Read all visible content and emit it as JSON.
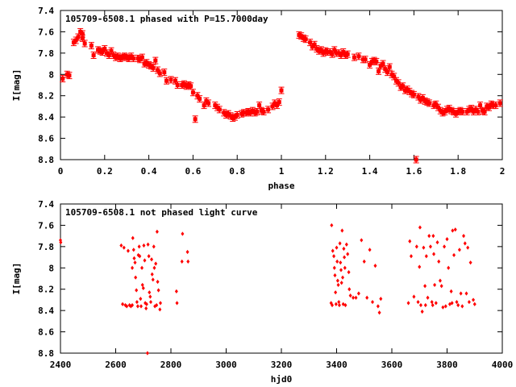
{
  "chart_data": [
    {
      "type": "scatter",
      "title": "105709-6508.1 phased with P=15.7000day",
      "xlabel": "phase",
      "ylabel": "I[mag]",
      "xlim": [
        0,
        2
      ],
      "ylim": [
        8.8,
        7.4
      ],
      "y_inverted": true,
      "xticks": [
        "0",
        "0.2",
        "0.4",
        "0.6",
        "0.8",
        "1",
        "1.2",
        "1.4",
        "1.6",
        "1.8",
        "2"
      ],
      "yticks": [
        "7.4",
        "7.6",
        "7.8",
        "8",
        "8.2",
        "8.4",
        "8.6",
        "8.8"
      ],
      "marker_color": "#ff0000",
      "marker": "error-cross",
      "points": [
        [
          0.01,
          8.04
        ],
        [
          0.03,
          8.0
        ],
        [
          0.04,
          8.01
        ],
        [
          0.06,
          7.7
        ],
        [
          0.07,
          7.68
        ],
        [
          0.08,
          7.65
        ],
        [
          0.09,
          7.6
        ],
        [
          0.1,
          7.62
        ],
        [
          0.1,
          7.66
        ],
        [
          0.11,
          7.71
        ],
        [
          0.14,
          7.73
        ],
        [
          0.15,
          7.82
        ],
        [
          0.17,
          7.77
        ],
        [
          0.18,
          7.78
        ],
        [
          0.19,
          7.79
        ],
        [
          0.2,
          7.76
        ],
        [
          0.21,
          7.8
        ],
        [
          0.22,
          7.82
        ],
        [
          0.23,
          7.78
        ],
        [
          0.24,
          7.82
        ],
        [
          0.25,
          7.84
        ],
        [
          0.26,
          7.83
        ],
        [
          0.27,
          7.85
        ],
        [
          0.28,
          7.84
        ],
        [
          0.29,
          7.83
        ],
        [
          0.3,
          7.84
        ],
        [
          0.31,
          7.85
        ],
        [
          0.32,
          7.83
        ],
        [
          0.33,
          7.85
        ],
        [
          0.35,
          7.85
        ],
        [
          0.36,
          7.86
        ],
        [
          0.37,
          7.84
        ],
        [
          0.38,
          7.9
        ],
        [
          0.39,
          7.89
        ],
        [
          0.4,
          7.91
        ],
        [
          0.41,
          7.92
        ],
        [
          0.42,
          7.94
        ],
        [
          0.43,
          7.87
        ],
        [
          0.44,
          7.96
        ],
        [
          0.45,
          7.99
        ],
        [
          0.47,
          7.98
        ],
        [
          0.48,
          8.06
        ],
        [
          0.5,
          8.05
        ],
        [
          0.52,
          8.06
        ],
        [
          0.53,
          8.1
        ],
        [
          0.55,
          8.1
        ],
        [
          0.56,
          8.09
        ],
        [
          0.57,
          8.11
        ],
        [
          0.58,
          8.1
        ],
        [
          0.59,
          8.11
        ],
        [
          0.6,
          8.17
        ],
        [
          0.61,
          8.42
        ],
        [
          0.62,
          8.2
        ],
        [
          0.63,
          8.23
        ],
        [
          0.65,
          8.29
        ],
        [
          0.66,
          8.25
        ],
        [
          0.67,
          8.27
        ],
        [
          0.7,
          8.29
        ],
        [
          0.71,
          8.31
        ],
        [
          0.72,
          8.33
        ],
        [
          0.74,
          8.36
        ],
        [
          0.75,
          8.38
        ],
        [
          0.76,
          8.37
        ],
        [
          0.77,
          8.39
        ],
        [
          0.78,
          8.41
        ],
        [
          0.79,
          8.4
        ],
        [
          0.8,
          8.38
        ],
        [
          0.82,
          8.37
        ],
        [
          0.83,
          8.36
        ],
        [
          0.84,
          8.36
        ],
        [
          0.85,
          8.35
        ],
        [
          0.86,
          8.36
        ],
        [
          0.87,
          8.34
        ],
        [
          0.88,
          8.36
        ],
        [
          0.89,
          8.35
        ],
        [
          0.9,
          8.29
        ],
        [
          0.91,
          8.34
        ],
        [
          0.92,
          8.35
        ],
        [
          0.94,
          8.33
        ],
        [
          0.96,
          8.3
        ],
        [
          0.97,
          8.27
        ],
        [
          0.98,
          8.29
        ],
        [
          0.99,
          8.26
        ],
        [
          1.0,
          8.15
        ],
        [
          1.08,
          7.63
        ],
        [
          1.09,
          7.64
        ],
        [
          1.1,
          7.66
        ],
        [
          1.11,
          7.67
        ],
        [
          1.13,
          7.7
        ],
        [
          1.14,
          7.74
        ],
        [
          1.15,
          7.72
        ],
        [
          1.16,
          7.76
        ],
        [
          1.17,
          7.78
        ],
        [
          1.18,
          7.77
        ],
        [
          1.19,
          7.8
        ],
        [
          1.2,
          7.78
        ],
        [
          1.21,
          7.79
        ],
        [
          1.22,
          7.79
        ],
        [
          1.23,
          7.81
        ],
        [
          1.24,
          7.77
        ],
        [
          1.25,
          7.8
        ],
        [
          1.26,
          7.8
        ],
        [
          1.27,
          7.82
        ],
        [
          1.28,
          7.79
        ],
        [
          1.29,
          7.82
        ],
        [
          1.3,
          7.81
        ],
        [
          1.33,
          7.84
        ],
        [
          1.35,
          7.83
        ],
        [
          1.37,
          7.86
        ],
        [
          1.38,
          7.86
        ],
        [
          1.4,
          7.91
        ],
        [
          1.41,
          7.88
        ],
        [
          1.42,
          7.87
        ],
        [
          1.43,
          7.88
        ],
        [
          1.44,
          7.97
        ],
        [
          1.45,
          7.92
        ],
        [
          1.46,
          7.9
        ],
        [
          1.47,
          7.95
        ],
        [
          1.48,
          7.98
        ],
        [
          1.49,
          7.93
        ],
        [
          1.5,
          8.0
        ],
        [
          1.51,
          8.02
        ],
        [
          1.52,
          8.06
        ],
        [
          1.53,
          8.08
        ],
        [
          1.54,
          8.12
        ],
        [
          1.55,
          8.11
        ],
        [
          1.56,
          8.15
        ],
        [
          1.57,
          8.14
        ],
        [
          1.58,
          8.16
        ],
        [
          1.59,
          8.18
        ],
        [
          1.6,
          8.19
        ],
        [
          1.61,
          8.8
        ],
        [
          1.62,
          8.21
        ],
        [
          1.63,
          8.24
        ],
        [
          1.64,
          8.22
        ],
        [
          1.65,
          8.25
        ],
        [
          1.66,
          8.26
        ],
        [
          1.67,
          8.27
        ],
        [
          1.69,
          8.29
        ],
        [
          1.7,
          8.28
        ],
        [
          1.71,
          8.31
        ],
        [
          1.72,
          8.34
        ],
        [
          1.73,
          8.36
        ],
        [
          1.74,
          8.35
        ],
        [
          1.75,
          8.33
        ],
        [
          1.76,
          8.32
        ],
        [
          1.77,
          8.34
        ],
        [
          1.78,
          8.35
        ],
        [
          1.79,
          8.37
        ],
        [
          1.8,
          8.35
        ],
        [
          1.81,
          8.34
        ],
        [
          1.82,
          8.35
        ],
        [
          1.84,
          8.35
        ],
        [
          1.85,
          8.33
        ],
        [
          1.86,
          8.32
        ],
        [
          1.87,
          8.35
        ],
        [
          1.88,
          8.33
        ],
        [
          1.89,
          8.35
        ],
        [
          1.9,
          8.29
        ],
        [
          1.91,
          8.34
        ],
        [
          1.92,
          8.35
        ],
        [
          1.93,
          8.3
        ],
        [
          1.94,
          8.31
        ],
        [
          1.95,
          8.28
        ],
        [
          1.96,
          8.29
        ],
        [
          1.97,
          8.29
        ],
        [
          1.99,
          8.27
        ]
      ]
    },
    {
      "type": "scatter",
      "title": "105709-6508.1 not phased light curve",
      "xlabel": "hjd0",
      "ylabel": "I[mag]",
      "xlim": [
        2400,
        4000
      ],
      "ylim": [
        8.8,
        7.4
      ],
      "y_inverted": true,
      "xticks": [
        "2400",
        "2600",
        "2800",
        "3000",
        "3200",
        "3400",
        "3600",
        "3800",
        "4000"
      ],
      "yticks": [
        "7.4",
        "7.6",
        "7.8",
        "8",
        "8.2",
        "8.4",
        "8.6",
        "8.8"
      ],
      "marker_color": "#ff0000",
      "marker": "diamond",
      "points": [
        [
          2400,
          7.74
        ],
        [
          2401,
          7.76
        ],
        [
          2620,
          7.79
        ],
        [
          2625,
          8.34
        ],
        [
          2630,
          7.81
        ],
        [
          2635,
          8.35
        ],
        [
          2640,
          8.36
        ],
        [
          2645,
          7.84
        ],
        [
          2650,
          8.35
        ],
        [
          2655,
          8.36
        ],
        [
          2660,
          8.0
        ],
        [
          2660,
          8.35
        ],
        [
          2662,
          7.72
        ],
        [
          2665,
          7.83
        ],
        [
          2667,
          7.91
        ],
        [
          2670,
          7.95
        ],
        [
          2672,
          8.09
        ],
        [
          2675,
          8.21
        ],
        [
          2677,
          8.32
        ],
        [
          2680,
          8.36
        ],
        [
          2682,
          7.88
        ],
        [
          2685,
          7.8
        ],
        [
          2687,
          7.89
        ],
        [
          2690,
          8.29
        ],
        [
          2692,
          8.36
        ],
        [
          2695,
          8.0
        ],
        [
          2697,
          8.16
        ],
        [
          2700,
          8.19
        ],
        [
          2702,
          7.79
        ],
        [
          2705,
          7.93
        ],
        [
          2707,
          8.33
        ],
        [
          2710,
          8.38
        ],
        [
          2712,
          8.34
        ],
        [
          2715,
          8.8
        ],
        [
          2717,
          7.78
        ],
        [
          2720,
          7.89
        ],
        [
          2722,
          8.23
        ],
        [
          2725,
          8.27
        ],
        [
          2727,
          8.32
        ],
        [
          2730,
          7.92
        ],
        [
          2732,
          8.06
        ],
        [
          2735,
          8.11
        ],
        [
          2738,
          7.8
        ],
        [
          2740,
          8.0
        ],
        [
          2742,
          8.36
        ],
        [
          2745,
          7.96
        ],
        [
          2748,
          8.35
        ],
        [
          2750,
          7.66
        ],
        [
          2752,
          8.13
        ],
        [
          2755,
          8.21
        ],
        [
          2760,
          8.39
        ],
        [
          2762,
          8.33
        ],
        [
          2820,
          8.22
        ],
        [
          2822,
          8.33
        ],
        [
          2840,
          7.94
        ],
        [
          2842,
          7.68
        ],
        [
          2860,
          7.85
        ],
        [
          2862,
          7.94
        ],
        [
          3380,
          8.33
        ],
        [
          3382,
          7.6
        ],
        [
          3384,
          8.35
        ],
        [
          3386,
          7.84
        ],
        [
          3390,
          7.89
        ],
        [
          3392,
          8.0
        ],
        [
          3394,
          8.07
        ],
        [
          3396,
          8.23
        ],
        [
          3398,
          8.34
        ],
        [
          3400,
          7.81
        ],
        [
          3402,
          7.94
        ],
        [
          3404,
          8.12
        ],
        [
          3406,
          8.16
        ],
        [
          3408,
          8.32
        ],
        [
          3410,
          8.35
        ],
        [
          3412,
          7.77
        ],
        [
          3414,
          7.95
        ],
        [
          3416,
          8.02
        ],
        [
          3418,
          8.14
        ],
        [
          3420,
          7.65
        ],
        [
          3422,
          8.09
        ],
        [
          3424,
          8.34
        ],
        [
          3426,
          7.82
        ],
        [
          3428,
          7.9
        ],
        [
          3430,
          8.0
        ],
        [
          3432,
          8.35
        ],
        [
          3436,
          7.78
        ],
        [
          3440,
          7.87
        ],
        [
          3444,
          8.04
        ],
        [
          3446,
          8.2
        ],
        [
          3450,
          8.26
        ],
        [
          3460,
          8.28
        ],
        [
          3470,
          8.28
        ],
        [
          3480,
          8.24
        ],
        [
          3490,
          7.74
        ],
        [
          3500,
          7.94
        ],
        [
          3510,
          8.28
        ],
        [
          3520,
          7.83
        ],
        [
          3530,
          8.32
        ],
        [
          3540,
          7.98
        ],
        [
          3550,
          8.36
        ],
        [
          3555,
          8.42
        ],
        [
          3560,
          8.29
        ],
        [
          3660,
          8.33
        ],
        [
          3665,
          7.75
        ],
        [
          3670,
          7.89
        ],
        [
          3680,
          8.27
        ],
        [
          3690,
          7.8
        ],
        [
          3695,
          8.32
        ],
        [
          3700,
          7.99
        ],
        [
          3702,
          7.62
        ],
        [
          3705,
          8.35
        ],
        [
          3710,
          8.41
        ],
        [
          3715,
          7.81
        ],
        [
          3720,
          8.17
        ],
        [
          3722,
          8.35
        ],
        [
          3725,
          7.89
        ],
        [
          3730,
          8.28
        ],
        [
          3735,
          7.7
        ],
        [
          3740,
          7.8
        ],
        [
          3745,
          8.32
        ],
        [
          3748,
          8.35
        ],
        [
          3750,
          7.7
        ],
        [
          3752,
          7.87
        ],
        [
          3755,
          8.16
        ],
        [
          3760,
          8.33
        ],
        [
          3765,
          7.76
        ],
        [
          3770,
          7.94
        ],
        [
          3775,
          8.12
        ],
        [
          3780,
          8.17
        ],
        [
          3785,
          8.37
        ],
        [
          3790,
          7.8
        ],
        [
          3795,
          8.36
        ],
        [
          3800,
          7.73
        ],
        [
          3805,
          8.0
        ],
        [
          3810,
          8.34
        ],
        [
          3815,
          8.22
        ],
        [
          3818,
          8.33
        ],
        [
          3820,
          7.65
        ],
        [
          3825,
          7.88
        ],
        [
          3830,
          7.64
        ],
        [
          3835,
          8.32
        ],
        [
          3840,
          8.35
        ],
        [
          3845,
          7.83
        ],
        [
          3850,
          8.24
        ],
        [
          3855,
          8.36
        ],
        [
          3860,
          7.7
        ],
        [
          3865,
          7.77
        ],
        [
          3870,
          8.24
        ],
        [
          3875,
          7.81
        ],
        [
          3880,
          8.32
        ],
        [
          3885,
          7.95
        ],
        [
          3895,
          8.3
        ],
        [
          3900,
          8.34
        ]
      ]
    }
  ]
}
